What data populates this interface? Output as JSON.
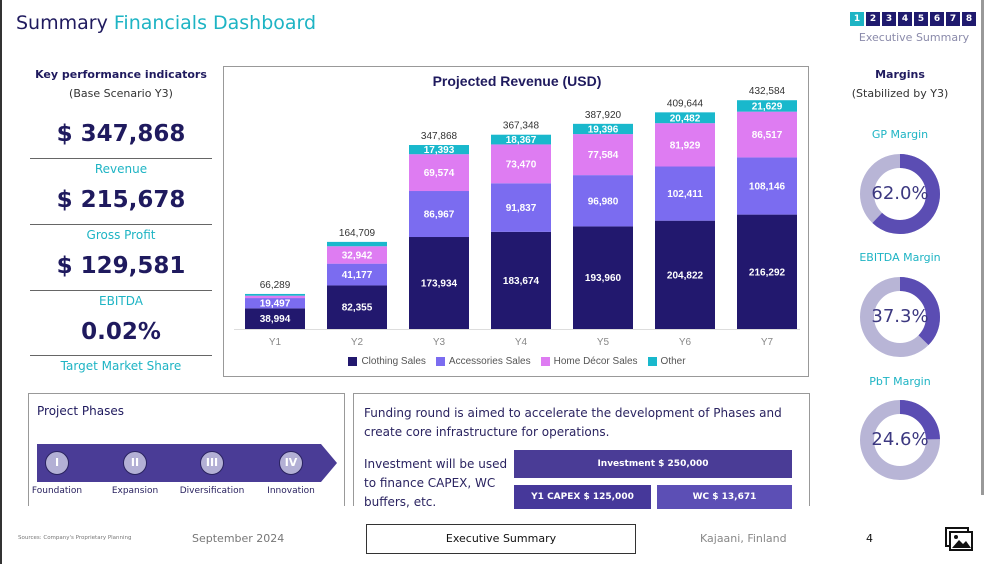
{
  "header": {
    "title_part1": "Summary",
    "title_part2": "Financials Dashboard",
    "nav": {
      "pages": [
        "1",
        "2",
        "3",
        "4",
        "5",
        "6",
        "7",
        "8"
      ],
      "active": "1",
      "label": "Executive Summary"
    }
  },
  "kpi": {
    "title": "Key performance indicators",
    "subtitle": "(Base Scenario Y3)",
    "items": [
      {
        "value": "$ 347,868",
        "label": "Revenue"
      },
      {
        "value": "$ 215,678",
        "label": "Gross Profit"
      },
      {
        "value": "$ 129,581",
        "label": "EBITDA"
      },
      {
        "value": "0.02%",
        "label": "Target Market Share"
      }
    ]
  },
  "chart_data": {
    "type": "bar",
    "stacked": true,
    "title": "Projected Revenue (USD)",
    "categories": [
      "Y1",
      "Y2",
      "Y3",
      "Y4",
      "Y5",
      "Y6",
      "Y7"
    ],
    "series": [
      {
        "name": "Clothing Sales",
        "color": "#22186e",
        "values": [
          38994,
          82355,
          173934,
          183674,
          193960,
          204822,
          216292
        ]
      },
      {
        "name": "Accessories Sales",
        "color": "#7b6cf0",
        "values": [
          19497,
          41177,
          86967,
          91837,
          96980,
          102411,
          108146
        ]
      },
      {
        "name": "Home Décor Sales",
        "color": "#de7cf2",
        "values": [
          4484,
          32942,
          69574,
          73470,
          77584,
          81929,
          86517
        ]
      },
      {
        "name": "Other",
        "color": "#19b8cc",
        "values": [
          3314,
          8235,
          17393,
          18367,
          19396,
          20482,
          21629
        ]
      }
    ],
    "totals": [
      "66,289",
      "164,709",
      "347,868",
      "367,348",
      "387,920",
      "409,644",
      "432,584"
    ],
    "ylim": [
      0,
      450000
    ],
    "grid": false,
    "legend": "bottom"
  },
  "margins": {
    "title": "Margins",
    "subtitle": "(Stabilized by Y3)",
    "items": [
      {
        "label": "GP Margin",
        "value": "62.0%",
        "fraction": 0.62
      },
      {
        "label": "EBITDA Margin",
        "value": "37.3%",
        "fraction": 0.373
      },
      {
        "label": "PbT Margin",
        "value": "24.6%",
        "fraction": 0.246
      }
    ],
    "fill_color": "#5b4db3",
    "track_color": "#b8b5d6"
  },
  "phases": {
    "title": "Project Phases",
    "items": [
      {
        "numeral": "I",
        "label": "Foundation"
      },
      {
        "numeral": "II",
        "label": "Expansion"
      },
      {
        "numeral": "III",
        "label": "Diversification"
      },
      {
        "numeral": "IV",
        "label": "Innovation"
      }
    ]
  },
  "funding": {
    "text": "Funding round is aimed to accelerate the development of Phases and create core infrastructure for operations.",
    "investment_text": "Investment will be used to finance CAPEX, WC buffers, etc.",
    "investment": "Investment $ 250,000",
    "capex": "Y1 CAPEX $ 125,000",
    "wc": "WC $ 13,671"
  },
  "footer": {
    "sources": "Sources: Company's Proprietary Planning",
    "date": "September 2024",
    "button": "Executive Summary",
    "location": "Kajaani, Finland",
    "page": "4",
    "icon": "image-gallery-icon"
  }
}
